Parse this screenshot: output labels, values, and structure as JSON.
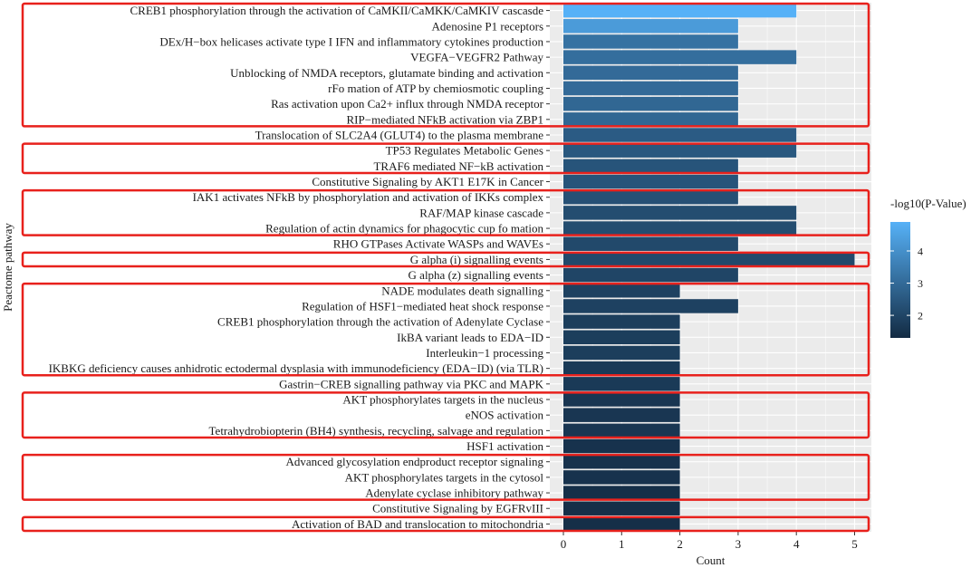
{
  "chart_data": {
    "type": "bar",
    "orientation": "horizontal",
    "title": "",
    "xlabel": "Count",
    "ylabel": "Peactome pathway",
    "xlim": [
      0,
      5
    ],
    "xticks": [
      "0",
      "1",
      "2",
      "3",
      "4",
      "5"
    ],
    "grid": true,
    "categories": [
      "CREB1 phosphorylation through the activation of CaMKII/CaMKK/CaMKIV cascasde",
      "Adenosine P1 receptors",
      "DEx/H−box helicases activate type I IFN and inflammatory cytokines production",
      "VEGFA−VEGFR2 Pathway",
      "Unblocking of NMDA receptors, glutamate binding and activation",
      "rFo mation of ATP by chemiosmotic coupling",
      "Ras activation upon Ca2+ influx through NMDA receptor",
      "RIP−mediated NFkB activation via ZBP1",
      "Translocation of SLC2A4 (GLUT4) to the plasma membrane",
      "TP53 Regulates Metabolic Genes",
      "TRAF6 mediated NF−kB activation",
      "Constitutive Signaling by AKT1 E17K in Cancer",
      "IAK1 activates NFkB by phosphorylation and activation of IKKs complex",
      "RAF/MAP kinase cascade",
      "Regulation of actin dynamics for phagocytic cup fo mation",
      "RHO GTPases Activate WASPs and WAVEs",
      "G alpha (i) signalling events",
      "G alpha (z) signalling events",
      "NADE modulates death signalling",
      "Regulation of HSF1−mediated heat shock response",
      "CREB1 phosphorylation through the activation of Adenylate Cyclase",
      "IkBA variant leads to EDA−ID",
      "Interleukin−1 processing",
      "IKBKG deficiency causes anhidrotic ectodermal dysplasia with immunodeficiency (EDA−ID) (via TLR)",
      "Gastrin−CREB signalling pathway via PKC and MAPK",
      "AKT phosphorylates targets in the nucleus",
      "eNOS activation",
      "Tetrahydrobiopterin (BH4) synthesis, recycling, salvage and regulation",
      "HSF1 activation",
      "Advanced glycosylation endproduct receptor signaling",
      "AKT phosphorylates targets in the cytosol",
      "Adenylate cyclase inhibitory pathway",
      "Constitutive Signaling by EGFRvIII",
      "Activation of BAD and translocation to mitochondria"
    ],
    "values": [
      4,
      3,
      3,
      4,
      3,
      3,
      3,
      3,
      4,
      4,
      3,
      3,
      3,
      4,
      4,
      3,
      5,
      3,
      2,
      3,
      2,
      2,
      2,
      2,
      2,
      2,
      2,
      2,
      2,
      2,
      2,
      2,
      2,
      2
    ],
    "neg_log10_p": [
      4.9,
      4.3,
      3.2,
      3.1,
      3.0,
      3.0,
      2.9,
      2.9,
      2.6,
      2.5,
      2.4,
      2.4,
      2.3,
      2.2,
      2.2,
      2.1,
      2.1,
      2.0,
      1.9,
      1.9,
      1.8,
      1.8,
      1.8,
      1.7,
      1.7,
      1.6,
      1.6,
      1.6,
      1.5,
      1.5,
      1.5,
      1.4,
      1.4,
      1.4
    ],
    "color_legend": {
      "title": "-log10(P-Value)",
      "ticks": [
        "4",
        "3",
        "2"
      ],
      "range": [
        1.3,
        4.9
      ],
      "low_color": "#132B43",
      "high_color": "#56B1F7",
      "placement": "right"
    },
    "highlight_groups": [
      [
        0,
        7
      ],
      [
        9,
        10
      ],
      [
        12,
        14
      ],
      [
        16,
        16
      ],
      [
        18,
        23
      ],
      [
        25,
        27
      ],
      [
        29,
        31
      ],
      [
        33,
        33
      ]
    ],
    "highlight_color": "#e8211c",
    "panel_background": "#ebebeb",
    "grid_color": "#ffffff"
  }
}
